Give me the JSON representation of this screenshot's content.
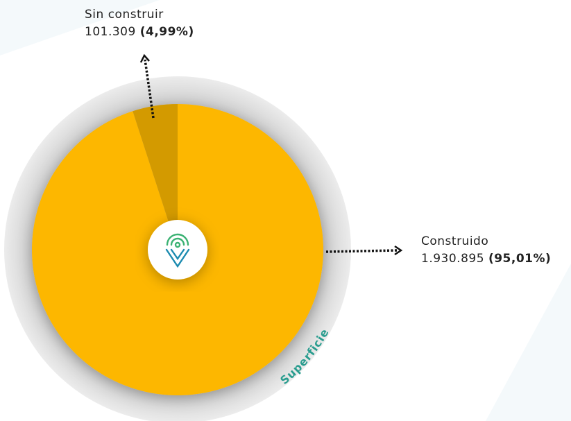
{
  "chart_data": {
    "type": "pie",
    "categories": [
      "Sin construir",
      "Construido"
    ],
    "values": [
      101309,
      1930895
    ],
    "value_labels": [
      "101.309",
      "1.930.895"
    ],
    "percentages": [
      4.99,
      95.01
    ],
    "percentage_labels": [
      "(4,99%)",
      "(95,01%)"
    ],
    "colors": [
      "#d39a00",
      "#fdb700"
    ],
    "label": "Superficie"
  }
}
